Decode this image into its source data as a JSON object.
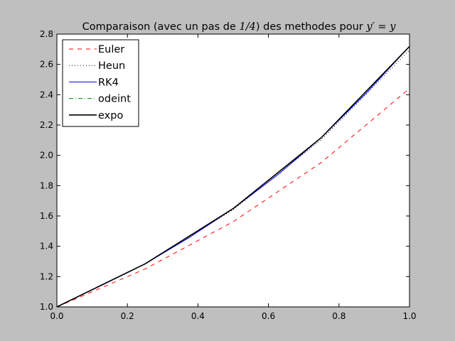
{
  "chart_data": {
    "type": "line",
    "title": {
      "prefix": "Comparaison (avec un pas de ",
      "math1": "1/4",
      "middle": ") des methodes pour ",
      "math2": "y′ = y"
    },
    "xlabel": "",
    "ylabel": "",
    "xlim": [
      0.0,
      1.0
    ],
    "ylim": [
      1.0,
      2.8
    ],
    "xticks": [
      0.0,
      0.2,
      0.4,
      0.6,
      0.8,
      1.0
    ],
    "xtick_labels": [
      "0.0",
      "0.2",
      "0.4",
      "0.6",
      "0.8",
      "1.0"
    ],
    "yticks": [
      1.0,
      1.2,
      1.4,
      1.6,
      1.8,
      2.0,
      2.2,
      2.4,
      2.6,
      2.8
    ],
    "ytick_labels": [
      "1.0",
      "1.2",
      "1.4",
      "1.6",
      "1.8",
      "2.0",
      "2.2",
      "2.4",
      "2.6",
      "2.8"
    ],
    "grid": false,
    "legend_position": "top-left",
    "series": [
      {
        "name": "Euler",
        "color": "#ff0000",
        "style": "dashed",
        "width": 1,
        "x": [
          0.0,
          0.25,
          0.5,
          0.75,
          1.0
        ],
        "y": [
          1.0,
          1.25,
          1.5625,
          1.953,
          2.441
        ]
      },
      {
        "name": "Heun",
        "color": "#000000",
        "style": "dotted",
        "width": 1,
        "x": [
          0.0,
          0.25,
          0.5,
          0.75,
          1.0
        ],
        "y": [
          1.0,
          1.2813,
          1.6416,
          2.1033,
          2.6949
        ]
      },
      {
        "name": "RK4",
        "color": "#0000ff",
        "style": "solid",
        "width": 1,
        "x": [
          0.0,
          0.125,
          0.25,
          0.375,
          0.5,
          0.625,
          0.75,
          0.875,
          1.0
        ],
        "y": [
          1.0,
          1.14,
          1.284,
          1.457,
          1.6487,
          1.869,
          2.117,
          2.405,
          2.7183
        ]
      },
      {
        "name": "odeint",
        "color": "#008000",
        "style": "dashdot",
        "width": 1,
        "x": [
          0.0,
          0.25,
          0.5,
          0.75,
          1.0
        ],
        "y": [
          1.0,
          1.284,
          1.6487,
          2.117,
          2.7183
        ]
      },
      {
        "name": "expo",
        "color": "#000000",
        "style": "solid",
        "width": 1.6,
        "x": [
          0.0,
          0.25,
          0.5,
          0.75,
          1.0
        ],
        "y": [
          1.0,
          1.284,
          1.6487,
          2.117,
          2.7183
        ]
      }
    ]
  }
}
